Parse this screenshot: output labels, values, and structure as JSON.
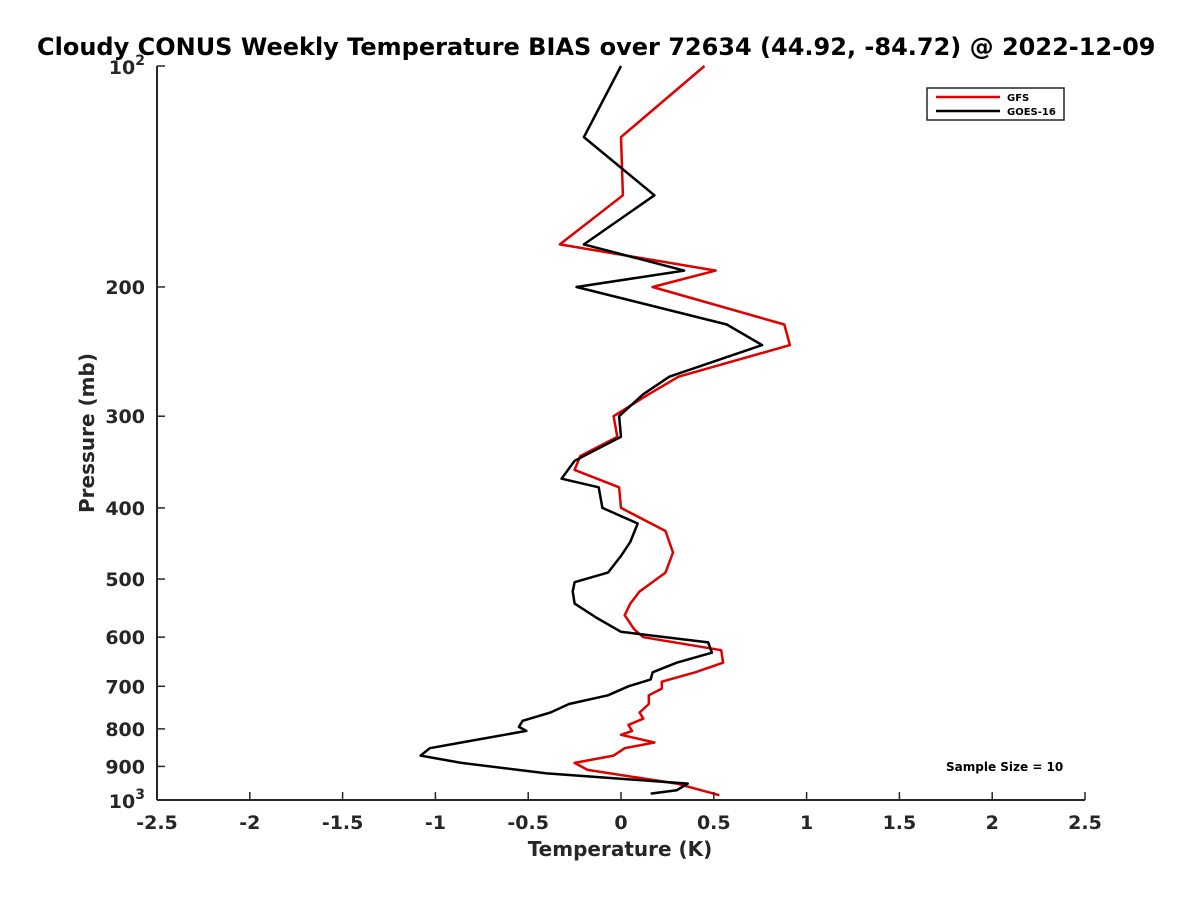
{
  "chart_data": {
    "type": "line",
    "title": "Cloudy CONUS Weekly Temperature BIAS over 72634 (44.92, -84.72) @ 2022-12-09",
    "xlabel": "Temperature (K)",
    "ylabel": "Pressure (mb)",
    "xlim": [
      -2.5,
      2.5
    ],
    "ylim": [
      100,
      1000
    ],
    "y_scale": "log",
    "y_reversed": true,
    "grid": false,
    "legend_position": "top-right",
    "annotation": "Sample Size = 10",
    "x_ticks": [
      "-2.5",
      "-2",
      "-1.5",
      "-1",
      "-0.5",
      "0",
      "0.5",
      "1",
      "1.5",
      "2",
      "2.5"
    ],
    "x_tick_values": [
      -2.5,
      -2,
      -1.5,
      -1,
      -0.5,
      0,
      0.5,
      1,
      1.5,
      2,
      2.5
    ],
    "y_ticks": [
      {
        "value": 200,
        "label": "200"
      },
      {
        "value": 300,
        "label": "300"
      },
      {
        "value": 400,
        "label": "400"
      },
      {
        "value": 500,
        "label": "500"
      },
      {
        "value": 600,
        "label": "600"
      },
      {
        "value": 700,
        "label": "700"
      },
      {
        "value": 800,
        "label": "800"
      },
      {
        "value": 900,
        "label": "900"
      }
    ],
    "y_tick_top": {
      "value": 100,
      "base": "10",
      "exp": "2"
    },
    "y_tick_bottom": {
      "value": 1000,
      "base": "10",
      "exp": "3"
    },
    "series": [
      {
        "name": "GFS",
        "color": "#e00000",
        "points": [
          [
            0.45,
            100
          ],
          [
            0.0,
            125
          ],
          [
            0.01,
            150
          ],
          [
            -0.33,
            175
          ],
          [
            0.51,
            190
          ],
          [
            0.17,
            200
          ],
          [
            0.88,
            225
          ],
          [
            0.91,
            240
          ],
          [
            0.31,
            265
          ],
          [
            0.15,
            280
          ],
          [
            -0.04,
            300
          ],
          [
            -0.02,
            320
          ],
          [
            -0.22,
            340
          ],
          [
            -0.25,
            355
          ],
          [
            -0.01,
            375
          ],
          [
            0.0,
            400
          ],
          [
            0.24,
            430
          ],
          [
            0.28,
            460
          ],
          [
            0.24,
            490
          ],
          [
            0.1,
            520
          ],
          [
            0.05,
            540
          ],
          [
            0.02,
            560
          ],
          [
            0.07,
            585
          ],
          [
            0.12,
            600
          ],
          [
            0.54,
            625
          ],
          [
            0.55,
            650
          ],
          [
            0.4,
            670
          ],
          [
            0.22,
            690
          ],
          [
            0.22,
            705
          ],
          [
            0.15,
            720
          ],
          [
            0.15,
            740
          ],
          [
            0.1,
            760
          ],
          [
            0.12,
            775
          ],
          [
            0.04,
            790
          ],
          [
            0.06,
            805
          ],
          [
            0.0,
            815
          ],
          [
            0.18,
            835
          ],
          [
            0.02,
            850
          ],
          [
            -0.04,
            870
          ],
          [
            -0.25,
            890
          ],
          [
            -0.18,
            910
          ],
          [
            0.3,
            950
          ],
          [
            0.53,
            985
          ]
        ]
      },
      {
        "name": "GOES-16",
        "color": "#000000",
        "points": [
          [
            0.0,
            100
          ],
          [
            -0.2,
            125
          ],
          [
            0.18,
            150
          ],
          [
            -0.2,
            175
          ],
          [
            0.34,
            190
          ],
          [
            -0.24,
            200
          ],
          [
            0.57,
            225
          ],
          [
            0.76,
            240
          ],
          [
            0.26,
            265
          ],
          [
            0.12,
            280
          ],
          [
            -0.01,
            300
          ],
          [
            0.0,
            320
          ],
          [
            -0.25,
            345
          ],
          [
            -0.32,
            365
          ],
          [
            -0.12,
            375
          ],
          [
            -0.1,
            400
          ],
          [
            0.09,
            420
          ],
          [
            0.05,
            445
          ],
          [
            0.0,
            465
          ],
          [
            -0.07,
            490
          ],
          [
            -0.25,
            505
          ],
          [
            -0.26,
            520
          ],
          [
            -0.25,
            540
          ],
          [
            -0.13,
            565
          ],
          [
            0.0,
            590
          ],
          [
            0.47,
            610
          ],
          [
            0.49,
            630
          ],
          [
            0.3,
            650
          ],
          [
            0.17,
            670
          ],
          [
            0.16,
            685
          ],
          [
            0.04,
            700
          ],
          [
            -0.07,
            720
          ],
          [
            -0.28,
            740
          ],
          [
            -0.38,
            760
          ],
          [
            -0.53,
            780
          ],
          [
            -0.55,
            795
          ],
          [
            -0.51,
            805
          ],
          [
            -0.86,
            835
          ],
          [
            -1.03,
            850
          ],
          [
            -1.08,
            870
          ],
          [
            -0.86,
            890
          ],
          [
            -0.4,
            920
          ],
          [
            0.36,
            950
          ],
          [
            0.3,
            970
          ],
          [
            0.16,
            980
          ]
        ]
      }
    ]
  }
}
